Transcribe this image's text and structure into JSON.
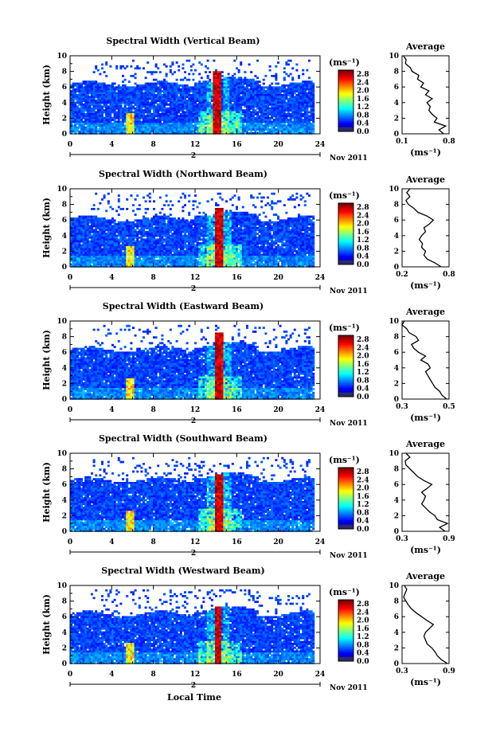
{
  "figure": {
    "xlabel": "Local Time",
    "date_label": "Nov 2011",
    "day_label": "2",
    "unit_label": "(ms⁻¹)",
    "avg_title": "Average",
    "avg_xlabel": "(ms⁻¹)",
    "ylabel": "Height (km)"
  },
  "chart_data": [
    {
      "type": "heatmap",
      "title": "Spectral Width (Vertical Beam)",
      "ylabel": "Height (km)",
      "x_ticks": [
        0,
        4,
        8,
        12,
        16,
        20,
        24
      ],
      "y_ticks": [
        0,
        2,
        4,
        6,
        8,
        10
      ],
      "xlim": [
        0,
        24
      ],
      "ylim": [
        0,
        10
      ],
      "colorbar_ticks": [
        "0.0",
        "0.4",
        "0.8",
        "1.2",
        "1.6",
        "2.0",
        "2.4",
        "2.8"
      ],
      "colorbar_range": [
        0,
        3.0
      ],
      "features": {
        "top_km": 6.4,
        "spike_start_h": 13.8,
        "spike_end_h": 14.6,
        "spike_top_km": 8.0,
        "small_spike_h": 5.8
      },
      "average": {
        "title": "Average",
        "xlim": [
          0.1,
          0.8
        ],
        "x_ticks": [
          "0.1",
          "0.8"
        ],
        "y_ticks": [
          0,
          2,
          4,
          6,
          8,
          10
        ],
        "heights": [
          0,
          0.5,
          1,
          1.5,
          2,
          2.5,
          3,
          3.5,
          4,
          4.5,
          5,
          5.5,
          6,
          6.5,
          7,
          7.5,
          8,
          8.5,
          9,
          9.5,
          10
        ],
        "values": [
          0.72,
          0.65,
          0.75,
          0.58,
          0.62,
          0.55,
          0.5,
          0.52,
          0.47,
          0.55,
          0.45,
          0.5,
          0.38,
          0.42,
          0.33,
          0.35,
          0.25,
          0.22,
          0.15,
          0.16,
          0.12
        ]
      }
    },
    {
      "type": "heatmap",
      "title": "Spectral Width (Northward Beam)",
      "ylabel": "Height (km)",
      "x_ticks": [
        0,
        4,
        8,
        12,
        16,
        20,
        24
      ],
      "y_ticks": [
        0,
        2,
        4,
        6,
        8,
        10
      ],
      "xlim": [
        0,
        24
      ],
      "ylim": [
        0,
        10
      ],
      "colorbar_ticks": [
        "0.0",
        "0.4",
        "0.8",
        "1.2",
        "1.6",
        "2.0",
        "2.4",
        "2.8"
      ],
      "colorbar_range": [
        0,
        3.0
      ],
      "features": {
        "top_km": 6.2,
        "spike_start_h": 13.9,
        "spike_end_h": 14.7,
        "spike_top_km": 7.6,
        "small_spike_h": 5.8
      },
      "average": {
        "title": "Average",
        "xlim": [
          0.2,
          0.8
        ],
        "x_ticks": [
          "0.2",
          "0.8"
        ],
        "y_ticks": [
          0,
          2,
          4,
          6,
          8,
          10
        ],
        "heights": [
          0,
          0.5,
          1,
          1.5,
          2,
          2.5,
          3,
          3.5,
          4,
          4.5,
          5,
          5.5,
          6,
          6.5,
          7,
          7.5,
          8,
          8.5,
          9,
          9.5,
          10
        ],
        "values": [
          0.7,
          0.62,
          0.52,
          0.48,
          0.5,
          0.45,
          0.46,
          0.42,
          0.45,
          0.5,
          0.48,
          0.55,
          0.6,
          0.52,
          0.4,
          0.35,
          0.28,
          0.25,
          0.3,
          0.26,
          0.3
        ]
      }
    },
    {
      "type": "heatmap",
      "title": "Spectral Width (Eastward Beam)",
      "ylabel": "Height (km)",
      "x_ticks": [
        0,
        4,
        8,
        12,
        16,
        20,
        24
      ],
      "y_ticks": [
        0,
        2,
        4,
        6,
        8,
        10
      ],
      "xlim": [
        0,
        24
      ],
      "ylim": [
        0,
        10
      ],
      "colorbar_ticks": [
        "0.0",
        "0.4",
        "0.8",
        "1.2",
        "1.6",
        "2.0",
        "2.4",
        "2.8"
      ],
      "colorbar_range": [
        0,
        3.0
      ],
      "features": {
        "top_km": 6.4,
        "spike_start_h": 13.9,
        "spike_end_h": 14.7,
        "spike_top_km": 8.6,
        "small_spike_h": 5.8
      },
      "average": {
        "title": "Average",
        "xlim": [
          0.3,
          0.5
        ],
        "x_ticks": [
          "0.3",
          "0.5"
        ],
        "y_ticks": [
          0,
          2,
          4,
          6,
          8,
          10
        ],
        "heights": [
          0,
          0.5,
          1,
          1.5,
          2,
          2.5,
          3,
          3.5,
          4,
          4.5,
          5,
          5.5,
          6,
          6.5,
          7,
          7.5,
          8,
          8.5,
          9,
          9.5,
          10
        ],
        "values": [
          0.49,
          0.47,
          0.46,
          0.44,
          0.43,
          0.42,
          0.41,
          0.4,
          0.42,
          0.41,
          0.38,
          0.4,
          0.37,
          0.35,
          0.34,
          0.37,
          0.36,
          0.33,
          0.32,
          0.3,
          0.31
        ]
      }
    },
    {
      "type": "heatmap",
      "title": "Spectral Width (Southward Beam)",
      "ylabel": "Height (km)",
      "x_ticks": [
        0,
        4,
        8,
        12,
        16,
        20,
        24
      ],
      "y_ticks": [
        0,
        2,
        4,
        6,
        8,
        10
      ],
      "xlim": [
        0,
        24
      ],
      "ylim": [
        0,
        10
      ],
      "colorbar_ticks": [
        "0.0",
        "0.4",
        "0.8",
        "1.2",
        "1.6",
        "2.0",
        "2.4",
        "2.8"
      ],
      "colorbar_range": [
        0,
        3.0
      ],
      "features": {
        "top_km": 6.6,
        "spike_start_h": 13.9,
        "spike_end_h": 14.7,
        "spike_top_km": 7.4,
        "small_spike_h": 5.8
      },
      "average": {
        "title": "Average",
        "xlim": [
          0.3,
          0.9
        ],
        "x_ticks": [
          "0.3",
          "0.9"
        ],
        "y_ticks": [
          0,
          2,
          4,
          6,
          8,
          10
        ],
        "heights": [
          0,
          0.5,
          1,
          1.5,
          2,
          2.5,
          3,
          3.5,
          4,
          4.5,
          5,
          5.5,
          6,
          6.5,
          7,
          7.5,
          8,
          8.5,
          9,
          9.5,
          10
        ],
        "values": [
          0.85,
          0.78,
          0.88,
          0.75,
          0.72,
          0.65,
          0.6,
          0.55,
          0.58,
          0.6,
          0.55,
          0.62,
          0.68,
          0.58,
          0.5,
          0.45,
          0.4,
          0.35,
          0.34,
          0.4,
          0.35
        ]
      }
    },
    {
      "type": "heatmap",
      "title": "Spectral Width (Westward Beam)",
      "ylabel": "Height (km)",
      "x_ticks": [
        0,
        4,
        8,
        12,
        16,
        20,
        24
      ],
      "y_ticks": [
        0,
        2,
        4,
        6,
        8,
        10
      ],
      "xlim": [
        0,
        24
      ],
      "ylim": [
        0,
        10
      ],
      "colorbar_ticks": [
        "0.0",
        "0.4",
        "0.8",
        "1.2",
        "1.6",
        "2.0",
        "2.4",
        "2.8"
      ],
      "colorbar_range": [
        0,
        3.0
      ],
      "features": {
        "top_km": 6.4,
        "spike_start_h": 13.9,
        "spike_end_h": 14.6,
        "spike_top_km": 7.2,
        "small_spike_h": 5.8
      },
      "average": {
        "title": "Average",
        "xlim": [
          0.3,
          0.9
        ],
        "x_ticks": [
          "0.3",
          "0.9"
        ],
        "y_ticks": [
          0,
          2,
          4,
          6,
          8,
          10
        ],
        "heights": [
          0,
          0.5,
          1,
          1.5,
          2,
          2.5,
          3,
          3.5,
          4,
          4.5,
          5,
          5.5,
          6,
          6.5,
          7,
          7.5,
          8,
          8.5,
          9,
          9.5,
          10
        ],
        "values": [
          0.88,
          0.8,
          0.75,
          0.72,
          0.68,
          0.62,
          0.6,
          0.58,
          0.6,
          0.65,
          0.7,
          0.62,
          0.55,
          0.48,
          0.42,
          0.38,
          0.35,
          0.32,
          0.34,
          0.36,
          0.33
        ]
      }
    }
  ]
}
